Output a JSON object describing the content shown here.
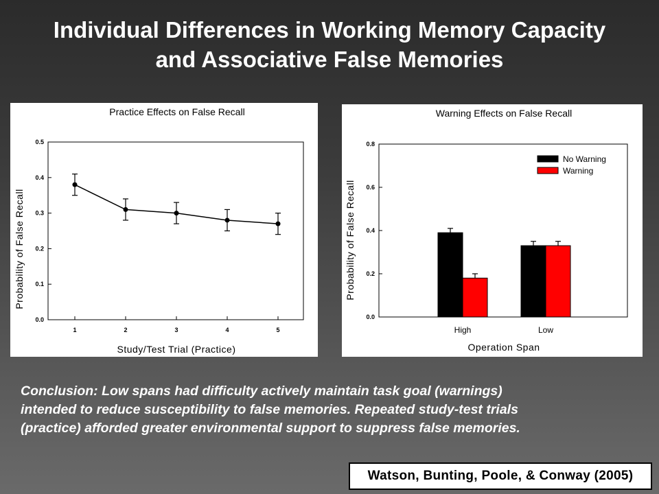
{
  "slide": {
    "title_line1": "Individual Differences in Working Memory Capacity",
    "title_line2": "and Associative False Memories",
    "conclusion_line1": "Conclusion: Low spans had difficulty actively maintain task goal (warnings)",
    "conclusion_line2": "intended to reduce susceptibility to false memories.  Repeated study-test trials",
    "conclusion_line3": "(practice) afforded greater environmental support to suppress false memories.",
    "citation": "Watson, Bunting, Poole, & Conway (2005)"
  },
  "chart_data": [
    {
      "type": "line",
      "title": "Practice Effects on False Recall",
      "xlabel": "Study/Test Trial (Practice)",
      "ylabel": "Probability of False Recall",
      "categories": [
        "1",
        "2",
        "3",
        "4",
        "5"
      ],
      "values": [
        0.38,
        0.31,
        0.3,
        0.28,
        0.27
      ],
      "errors": [
        0.03,
        0.03,
        0.03,
        0.03,
        0.03
      ],
      "ylim": [
        0,
        0.5
      ],
      "yticks": [
        "0.0",
        "0.1",
        "0.2",
        "0.3",
        "0.4",
        "0.5"
      ],
      "grid": false,
      "color": "#000000"
    },
    {
      "type": "bar",
      "title": "Warning Effects on False Recall",
      "xlabel": "Operation Span",
      "ylabel": "Probability of False Recall",
      "categories": [
        "High",
        "Low"
      ],
      "series": [
        {
          "name": "No Warning",
          "color": "#000000",
          "values": [
            0.39,
            0.33
          ],
          "errors": [
            0.02,
            0.02
          ]
        },
        {
          "name": "Warning",
          "color": "#ff0000",
          "values": [
            0.18,
            0.33
          ],
          "errors": [
            0.02,
            0.02
          ]
        }
      ],
      "ylim": [
        0,
        0.8
      ],
      "yticks": [
        "0.0",
        "0.2",
        "0.4",
        "0.6",
        "0.8"
      ],
      "legend_position": "top-right",
      "grid": false
    }
  ]
}
